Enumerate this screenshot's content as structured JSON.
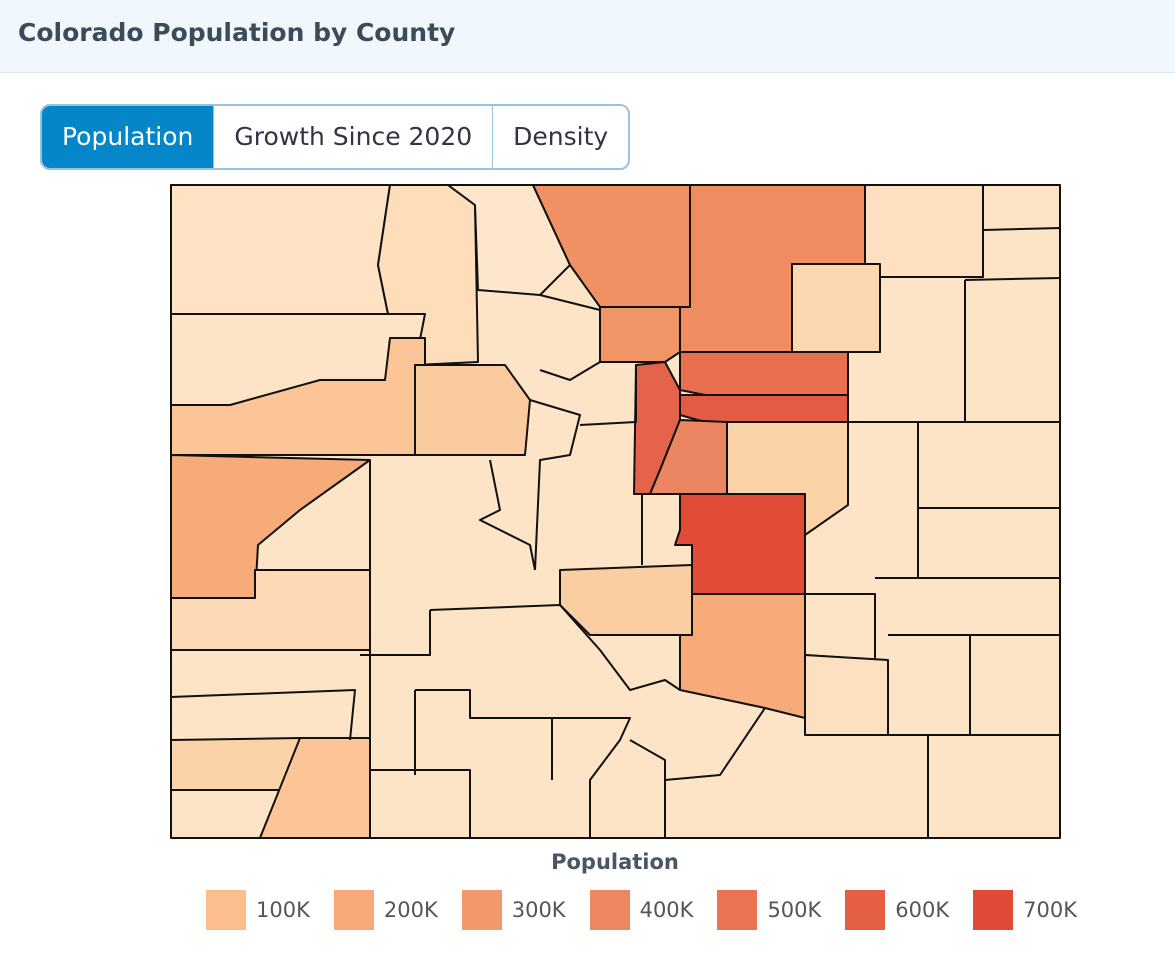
{
  "header": {
    "title": "Colorado Population by County"
  },
  "tabs": [
    {
      "label": "Population",
      "active": true
    },
    {
      "label": "Growth Since 2020",
      "active": false
    },
    {
      "label": "Density",
      "active": false
    }
  ],
  "legend": {
    "title": "Population",
    "items": [
      {
        "label": "100K",
        "color": "#fbbe8c"
      },
      {
        "label": "200K",
        "color": "#f7aa78"
      },
      {
        "label": "300K",
        "color": "#f3986a"
      },
      {
        "label": "400K",
        "color": "#ee8660"
      },
      {
        "label": "500K",
        "color": "#e97352"
      },
      {
        "label": "600K",
        "color": "#e55f45"
      },
      {
        "label": "700K",
        "color": "#e04b38"
      }
    ]
  }
}
